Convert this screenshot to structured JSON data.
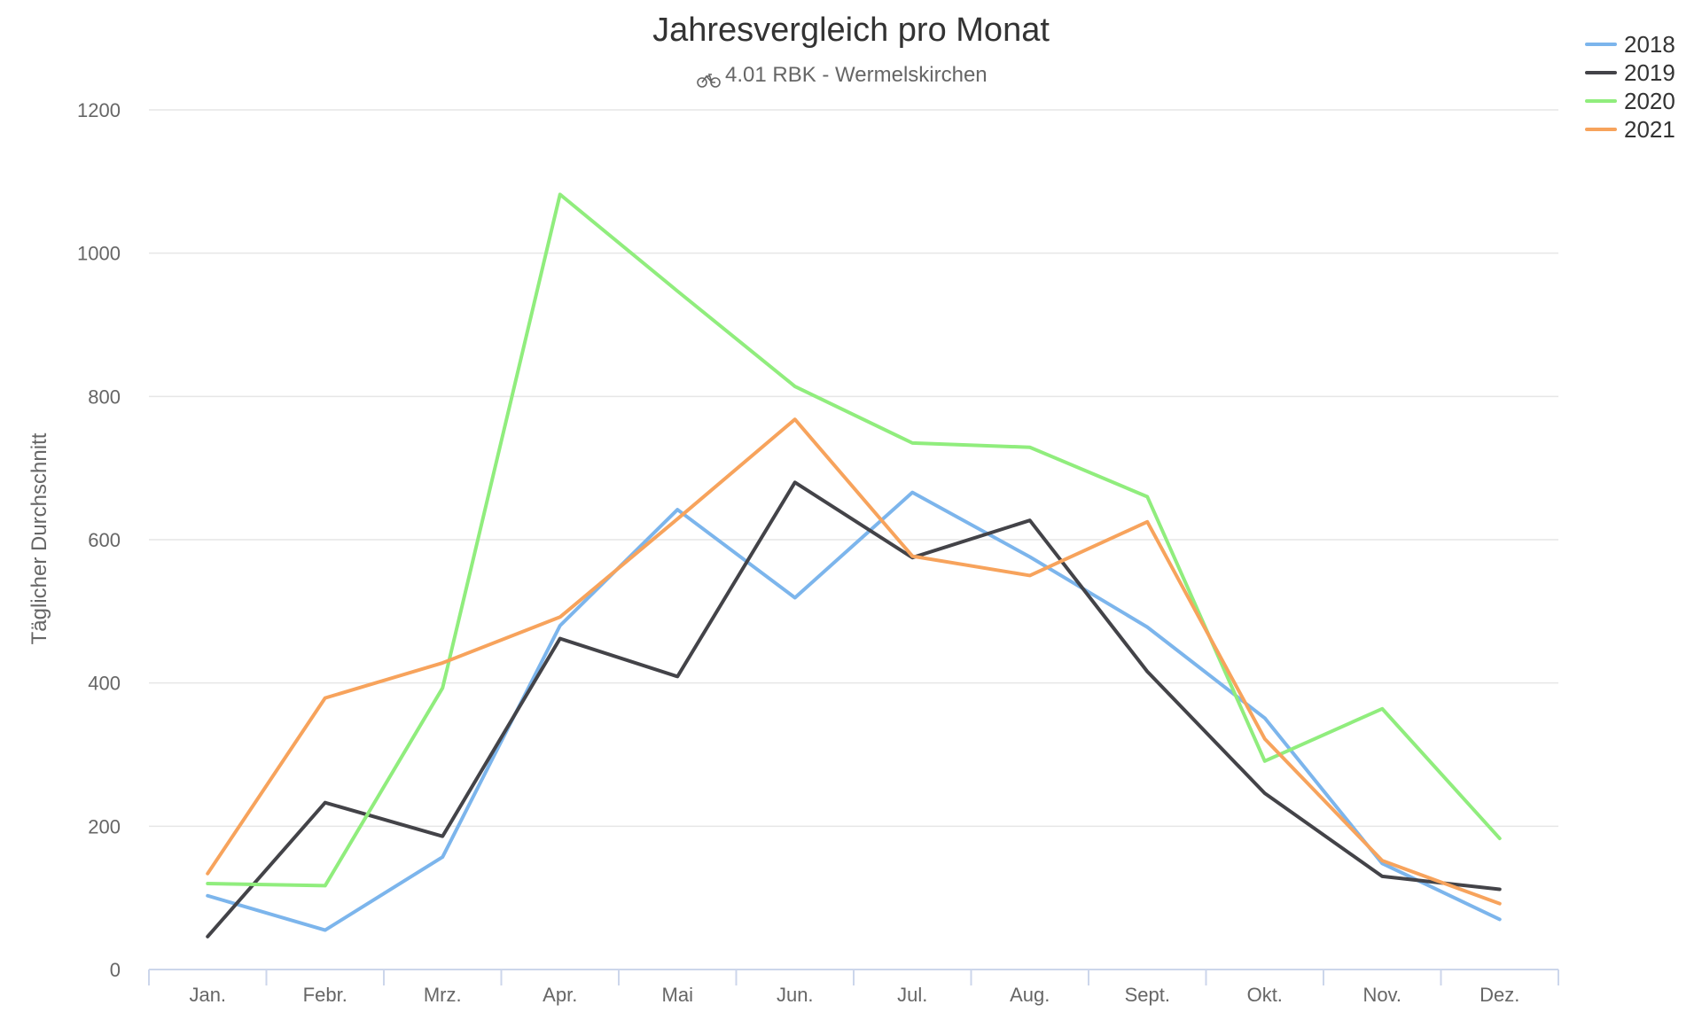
{
  "chart_data": {
    "type": "line",
    "title": "Jahresvergleich pro Monat",
    "subtitle": "4.01 RBK - Wermelskirchen",
    "subtitle_icon": "bicycle-icon",
    "xlabel": "",
    "ylabel": "Täglicher Durchschnitt",
    "categories": [
      "Jan.",
      "Febr.",
      "Mrz.",
      "Apr.",
      "Mai",
      "Jun.",
      "Jul.",
      "Aug.",
      "Sept.",
      "Okt.",
      "Nov.",
      "Dez."
    ],
    "ylim": [
      0,
      1200
    ],
    "yticks": [
      "0",
      "200",
      "400",
      "600",
      "800",
      "1000",
      "1200"
    ],
    "grid": true,
    "legend_position": "top-right",
    "series": [
      {
        "name": "2018",
        "color": "#7cb5ec",
        "values": [
          103,
          55,
          157,
          480,
          642,
          519,
          666,
          576,
          478,
          351,
          148,
          70
        ]
      },
      {
        "name": "2019",
        "color": "#434348",
        "values": [
          46,
          233,
          186,
          462,
          409,
          680,
          575,
          627,
          416,
          246,
          130,
          112
        ]
      },
      {
        "name": "2020",
        "color": "#90ed7d",
        "values": [
          120,
          117,
          393,
          1082,
          947,
          814,
          735,
          729,
          660,
          291,
          364,
          183
        ]
      },
      {
        "name": "2021",
        "color": "#f7a35c",
        "values": [
          134,
          379,
          428,
          492,
          629,
          768,
          577,
          550,
          625,
          322,
          152,
          92
        ]
      }
    ]
  }
}
